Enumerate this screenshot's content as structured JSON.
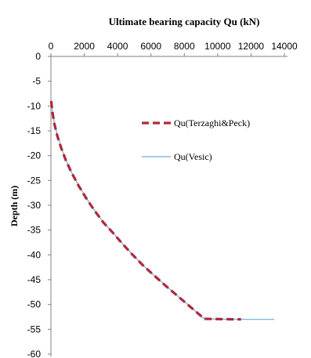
{
  "chart_data": {
    "type": "line",
    "title": "Ultimate bearing capacity Qu (kN)",
    "xlabel": "",
    "ylabel": "Depth (m)",
    "xlim": [
      0,
      14000
    ],
    "ylim": [
      -60,
      0
    ],
    "x_ticks": [
      0,
      2000,
      4000,
      6000,
      8000,
      10000,
      12000,
      14000
    ],
    "y_ticks": [
      0,
      -5,
      -10,
      -15,
      -20,
      -25,
      -30,
      -35,
      -40,
      -45,
      -50,
      -55,
      -60
    ],
    "x_axis_position": "top",
    "grid": false,
    "legend_position": "right",
    "series": [
      {
        "name": "Qu(Terzaghi&Peck)",
        "color": "#b0273a",
        "style": "dashed",
        "x": [
          20,
          80,
          200,
          380,
          620,
          900,
          1250,
          1650,
          2100,
          2600,
          3150,
          3700,
          4300,
          4900,
          5550,
          6200,
          6900,
          7600,
          8300,
          9200,
          10200,
          11400
        ],
        "y": [
          -9,
          -11,
          -13.5,
          -16,
          -18.5,
          -21,
          -23.5,
          -26,
          -28.5,
          -31,
          -33.5,
          -35.5,
          -37.8,
          -40,
          -42.2,
          -44.2,
          -46.3,
          -48.3,
          -50.3,
          -52.9,
          -52.95,
          -53
        ]
      },
      {
        "name": "Qu(Vesic)",
        "color": "#6aaed6",
        "style": "solid",
        "x": [
          30,
          90,
          210,
          390,
          630,
          910,
          1260,
          1660,
          2110,
          2610,
          3160,
          3710,
          4310,
          4910,
          5560,
          6210,
          6910,
          7610,
          8310,
          9200,
          11000,
          13400
        ],
        "y": [
          -9,
          -11,
          -13.5,
          -16,
          -18.5,
          -21,
          -23.5,
          -26,
          -28.5,
          -31,
          -33.5,
          -35.5,
          -37.8,
          -40,
          -42.2,
          -44.2,
          -46.3,
          -48.3,
          -50.3,
          -52.9,
          -53,
          -53
        ]
      }
    ]
  }
}
